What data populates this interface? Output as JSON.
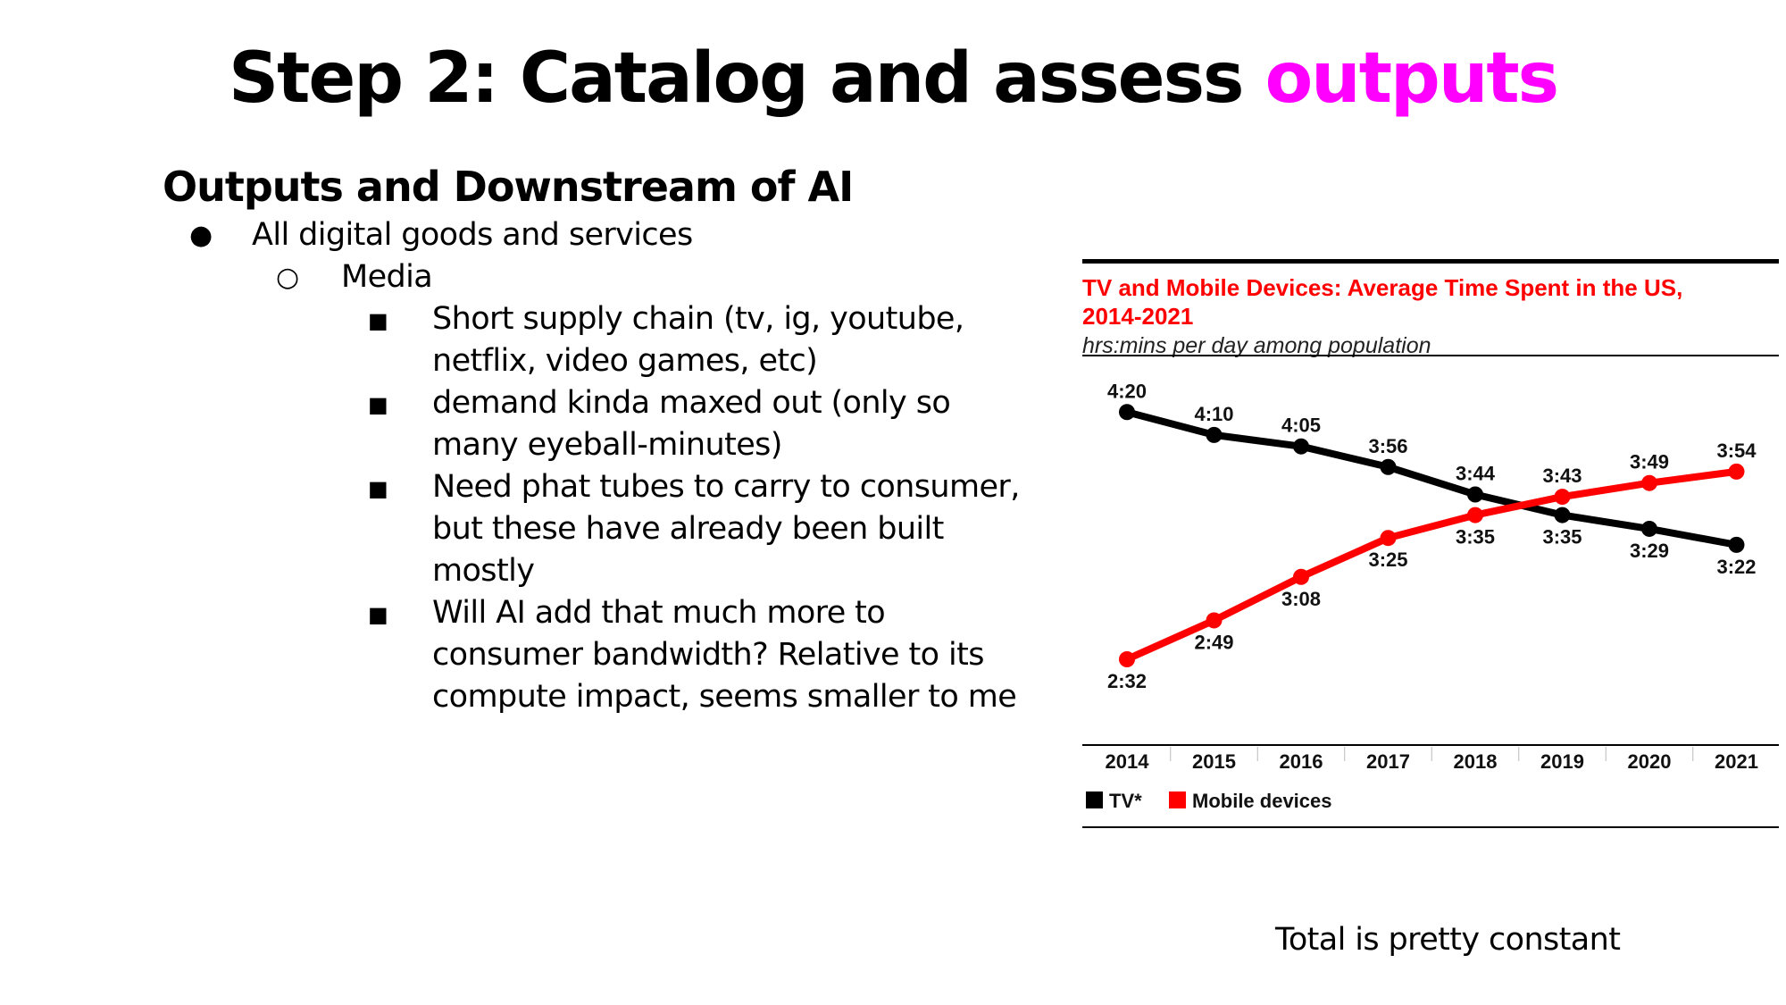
{
  "slide": {
    "title_main": "Step 2: Catalog and assess ",
    "title_accent": "outputs",
    "accent_color": "#ff00ff"
  },
  "outline": {
    "heading": "Outputs and Downstream of AI",
    "level1": "All digital goods and services",
    "level2": "Media",
    "level3": [
      "Short supply chain (tv, ig, youtube, netflix, video games, etc)",
      "demand kinda maxed out (only so many eyeball-minutes)",
      "Need phat tubes to carry to consumer, but these have already been built mostly",
      "Will AI add that much more to consumer bandwidth? Relative to its compute impact, seems smaller to me"
    ],
    "bullets": [
      "●",
      "○",
      "■"
    ]
  },
  "footnote": "Total is pretty constant",
  "chart_data": {
    "type": "line",
    "title": "TV and Mobile Devices: Average Time Spent in the US, 2014-2021",
    "title_lines": [
      "TV and Mobile Devices: Average Time Spent in the US,",
      "2014-2021"
    ],
    "subtitle": "hrs:mins per day among population",
    "x": [
      "2014",
      "2015",
      "2016",
      "2017",
      "2018",
      "2019",
      "2020",
      "2021"
    ],
    "y_unit": "minutes per day",
    "ylim": [
      120,
      280
    ],
    "grid": false,
    "legend_position": "bottom-left",
    "title_color": "#ff0000",
    "series": [
      {
        "name": "TV*",
        "color": "#000000",
        "values": [
          260,
          250,
          245,
          236,
          224,
          215,
          209,
          202
        ],
        "labels": [
          "4:20",
          "4:10",
          "4:05",
          "3:56",
          "3:44",
          "3:35",
          "3:29",
          "3:22"
        ],
        "label_side": [
          "above",
          "above",
          "above",
          "above",
          "above",
          "below",
          "below",
          "below"
        ]
      },
      {
        "name": "Mobile devices",
        "color": "#ff0000",
        "values": [
          152,
          169,
          188,
          205,
          215,
          223,
          229,
          234
        ],
        "labels": [
          "2:32",
          "2:49",
          "3:08",
          "3:25",
          "3:35",
          "3:43",
          "3:49",
          "3:54"
        ],
        "label_side": [
          "below",
          "below",
          "below",
          "below",
          "below",
          "above",
          "above",
          "above"
        ]
      }
    ]
  }
}
